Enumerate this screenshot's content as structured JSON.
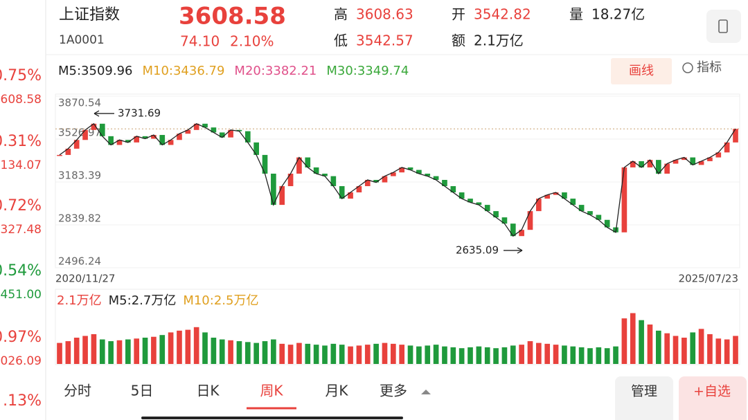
{
  "side_list": [
    {
      "change": "0.75%",
      "price": "608.58",
      "color": "#e8413c"
    },
    {
      "change": "0.31%",
      "price": "134.07",
      "color": "#e8413c"
    },
    {
      "change": "0.72%",
      "price": "327.48",
      "color": "#e8413c"
    },
    {
      "change": "0.54%",
      "price": "451.00",
      "color": "#1f9a3c"
    },
    {
      "change": "0.97%",
      "price": "026.09",
      "color": "#e8413c"
    },
    {
      "change": ".13%",
      "color": "#e8413c"
    }
  ],
  "header": {
    "name": "上证指数",
    "code": "1A0001",
    "price": "3608.58",
    "change": "74.10",
    "change_pct": "2.10%",
    "stats": [
      {
        "label": "高",
        "value": "3608.63",
        "color": "#e8413c"
      },
      {
        "label": "低",
        "value": "3542.57",
        "color": "#e8413c"
      },
      {
        "label": "开",
        "value": "3542.82",
        "color": "#e8413c"
      },
      {
        "label": "额",
        "value": "2.1万亿",
        "color": "#222222"
      },
      {
        "label": "量",
        "value": "18.27亿",
        "color": "#222222"
      }
    ]
  },
  "ma_labels": [
    {
      "text": "M5:3509.96",
      "color": "#222222"
    },
    {
      "text": "M10:3436.79",
      "color": "#e0a020"
    },
    {
      "text": "M20:3382.21",
      "color": "#e0508a"
    },
    {
      "text": "M30:3349.74",
      "color": "#3aa83a"
    }
  ],
  "tools": {
    "draw": "画线",
    "indicator": "指标"
  },
  "kline": {
    "type": "candlestick",
    "ylim": [
      2496.24,
      3870.54
    ],
    "yticks": [
      3870.54,
      3526.97,
      3183.39,
      2839.82,
      2496.24
    ],
    "last_price": 3608.58,
    "high_mark": 3731.69,
    "low_mark": 2635.09,
    "x_start": "2020/11/27",
    "x_end": "2025/07/23",
    "up_color": "#e8413c",
    "down_color": "#1f9a3c",
    "closes": [
      3400,
      3450,
      3520,
      3600,
      3650,
      3550,
      3480,
      3520,
      3500,
      3550,
      3530,
      3560,
      3480,
      3520,
      3570,
      3600,
      3650,
      3620,
      3580,
      3540,
      3600,
      3590,
      3500,
      3400,
      3250,
      3000,
      3150,
      3250,
      3380,
      3300,
      3250,
      3230,
      3150,
      3050,
      3100,
      3150,
      3200,
      3180,
      3230,
      3260,
      3300,
      3280,
      3250,
      3230,
      3200,
      3150,
      3100,
      3050,
      3020,
      3000,
      2950,
      2900,
      2850,
      2750,
      2800,
      2950,
      3050,
      3080,
      3100,
      3050,
      3000,
      2950,
      2920,
      2880,
      2820,
      2780,
      3300,
      3350,
      3300,
      3360,
      3250,
      3330,
      3360,
      3380,
      3320,
      3350,
      3380,
      3420,
      3500,
      3608.58
    ],
    "volume_ylim": [
      0,
      6
    ],
    "volumes": [
      2.4,
      2.6,
      3.0,
      3.2,
      3.4,
      2.8,
      2.6,
      2.7,
      2.8,
      2.9,
      3.0,
      3.1,
      3.3,
      3.6,
      3.8,
      3.9,
      4.2,
      3.6,
      3.0,
      2.8,
      2.7,
      2.6,
      2.5,
      2.4,
      2.6,
      2.8,
      2.3,
      2.2,
      2.4,
      2.3,
      2.2,
      2.1,
      2.3,
      2.2,
      2.0,
      2.1,
      2.2,
      2.3,
      2.4,
      2.3,
      2.2,
      2.1,
      2.0,
      2.1,
      2.2,
      2.0,
      1.9,
      1.8,
      1.9,
      2.0,
      1.9,
      1.8,
      1.9,
      2.1,
      2.2,
      2.6,
      2.4,
      2.3,
      2.2,
      2.1,
      2.0,
      1.9,
      1.8,
      1.9,
      1.8,
      2.0,
      5.2,
      5.8,
      5.0,
      4.5,
      3.8,
      3.5,
      3.2,
      3.0,
      3.6,
      4.0,
      3.4,
      2.9,
      2.8,
      3.2
    ]
  },
  "volume_labels": [
    {
      "text": "2.1万亿",
      "color": "#e8413c"
    },
    {
      "text": "M5:2.7万亿",
      "color": "#222222"
    },
    {
      "text": "M10:2.5万亿",
      "color": "#e0a020"
    }
  ],
  "tabs": [
    "分时",
    "5日",
    "日K",
    "周K",
    "月K",
    "更多"
  ],
  "active_tab": 3,
  "buttons": {
    "manage": "管理",
    "add": "+自选"
  }
}
